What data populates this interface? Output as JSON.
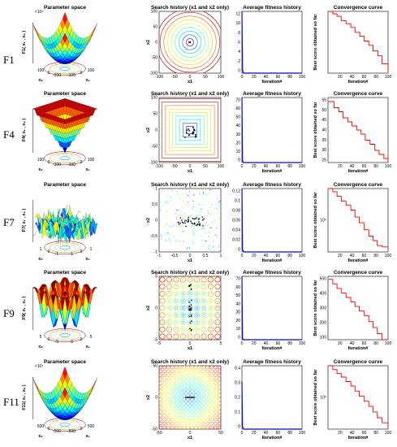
{
  "colors": {
    "trace": "#ff0000",
    "fitness": "#0000ff",
    "axis": "#000000",
    "search_points": "#000000"
  },
  "rows": [
    {
      "label": "F1",
      "parameter_space": {
        "title": "Parameter space",
        "zlabel": "F1( x₁ , x₂ )",
        "xlabel_left": "x₂",
        "xlabel_right": "x₁",
        "ticks_left": [
          "100",
          "0",
          "-100"
        ],
        "ticks_right": [
          "-100",
          "0",
          "100"
        ],
        "z_exponent": "×10⁴",
        "shape": "bowl"
      },
      "search_history": {
        "title": "Search history (x1 and x2 only)",
        "xlabel": "x1",
        "ylabel": "x2",
        "xticks": [
          "-100",
          "-50",
          "0",
          "50",
          "100"
        ],
        "yticks": [
          "100",
          "50",
          "0",
          "-50",
          "-100"
        ],
        "contour": "circle"
      },
      "average_fitness": {
        "title": "Average fitness history",
        "xlabel": "Iteration#",
        "xticks": [
          "0",
          "20",
          "40",
          "60",
          "80",
          "100"
        ],
        "yticks": [
          "12",
          "10",
          "8",
          "6",
          "4",
          "2",
          "0"
        ]
      },
      "convergence": {
        "title": "Convergence curve",
        "xlabel": "Iteration#",
        "ylabel": "Best score obtained so far",
        "xticks": [
          "20",
          "40",
          "60",
          "80",
          "100"
        ],
        "yticks": []
      }
    },
    {
      "label": "F4",
      "parameter_space": {
        "title": "Parameter space",
        "zlabel": "F4( x₁ , x₂ )",
        "xlabel_left": "x₂",
        "xlabel_right": "x₁",
        "ticks_left": [
          "100",
          "0",
          "-100"
        ],
        "ticks_right": [
          "-100",
          "0",
          "100"
        ],
        "z_exponent": "",
        "shape": "pyramid"
      },
      "search_history": {
        "title": "Search history (x1 and x2 only)",
        "xlabel": "x1",
        "ylabel": "x2",
        "xticks": [
          "-100",
          "-50",
          "0",
          "50",
          "100"
        ],
        "yticks": [
          "100",
          "50",
          "0",
          "-50",
          "-100"
        ],
        "contour": "square"
      },
      "average_fitness": {
        "title": "Average fitness history",
        "xlabel": "Iteration#",
        "xticks": [
          "0",
          "20",
          "40",
          "60",
          "80",
          "100"
        ],
        "yticks": [
          "70",
          "60",
          "50",
          "40",
          "30",
          "20",
          "10",
          "0"
        ]
      },
      "convergence": {
        "title": "Convergence curve",
        "xlabel": "Iteration#",
        "ylabel": "Best score obtained so far",
        "xticks": [
          "20",
          "40",
          "60",
          "80",
          "100"
        ],
        "yticks": [
          "55",
          "50",
          "45",
          "40",
          "35",
          "30",
          "25"
        ]
      }
    },
    {
      "label": "F7",
      "parameter_space": {
        "title": "Parameter space",
        "zlabel": "F7( x₁ , x₂ )",
        "xlabel_left": "x₂",
        "xlabel_right": "x₁",
        "ticks_left": [
          "1",
          "0",
          "-1"
        ],
        "ticks_right": [
          "-1",
          "0",
          "1"
        ],
        "z_exponent": "",
        "shape": "noise"
      },
      "search_history": {
        "title": "Search history (x1 and x2 only)",
        "xlabel": "x1",
        "ylabel": "x2",
        "xticks": [
          "-1",
          "-0.5",
          "0",
          "0.5",
          "1"
        ],
        "yticks": [
          "1",
          "0.5",
          "0",
          "-0.5",
          "-1"
        ],
        "contour": "noise"
      },
      "average_fitness": {
        "title": "Average fitness history",
        "xlabel": "Iteration#",
        "xticks": [
          "0",
          "20",
          "40",
          "60",
          "80",
          "100"
        ],
        "yticks": [
          "0.12",
          "0.1",
          "0.08",
          "0.06",
          "0.04",
          "0.02",
          "0"
        ]
      },
      "convergence": {
        "title": "Convergence curve",
        "xlabel": "Iteration#",
        "ylabel": "Best score obtained so far",
        "xticks": [
          "20",
          "40",
          "60",
          "80",
          "100"
        ],
        "yticks": [
          "10⁰"
        ]
      }
    },
    {
      "label": "F9",
      "parameter_space": {
        "title": "Parameter space",
        "zlabel": "F9( x₁ , x₂ )",
        "xlabel_left": "x₂",
        "xlabel_right": "x₁",
        "ticks_left": [
          "5",
          "0",
          "-5"
        ],
        "ticks_right": [
          "-5",
          "0",
          "5"
        ],
        "z_exponent": "",
        "shape": "rastrigin"
      },
      "search_history": {
        "title": "Search history (x1 and x2 only)",
        "xlabel": "x1",
        "ylabel": "x2",
        "xticks": [
          "-5",
          "0",
          "5"
        ],
        "yticks": [
          "5",
          "0",
          "-5"
        ],
        "contour": "grid"
      },
      "average_fitness": {
        "title": "Average fitness history",
        "xlabel": "Iteration#",
        "xticks": [
          "0",
          "20",
          "40",
          "60",
          "80",
          "100"
        ],
        "yticks": [
          "70",
          "60",
          "50",
          "40",
          "30",
          "20",
          "10",
          "0"
        ]
      },
      "convergence": {
        "title": "Convergence curve",
        "xlabel": "Iteration#",
        "ylabel": "Best score obtained so far",
        "xticks": [
          "20",
          "40",
          "60",
          "80",
          "100"
        ],
        "yticks": [
          "500",
          "400",
          "300",
          "200",
          "100"
        ]
      }
    },
    {
      "label": "F11",
      "parameter_space": {
        "title": "Parameter space",
        "zlabel": "F11( x₁ , x₂ )",
        "xlabel_left": "x₂",
        "xlabel_right": "x₁",
        "ticks_left": [
          "500",
          "0",
          "-500"
        ],
        "ticks_right": [
          "-500",
          "0",
          "500"
        ],
        "z_exponent": "×10⁴",
        "shape": "bowl"
      },
      "search_history": {
        "title": "Search history (x1 and x2 only)",
        "xlabel": "x1",
        "ylabel": "x2",
        "xticks": [
          "-50",
          "0",
          "50"
        ],
        "yticks": [
          "50",
          "0",
          "-50"
        ],
        "contour": "dense"
      },
      "average_fitness": {
        "title": "Average fitness history",
        "xlabel": "Iteration#",
        "xticks": [
          "0",
          "20",
          "40",
          "60",
          "80",
          "100"
        ],
        "yticks": [
          "0.4",
          "0.3",
          "0.2",
          "0.1",
          "0"
        ]
      },
      "convergence": {
        "title": "Convergence curve",
        "xlabel": "Iteration#",
        "ylabel": "Best score obtained so far",
        "xticks": [
          "20",
          "40",
          "60",
          "80",
          "100"
        ],
        "yticks": [
          "10⁰"
        ]
      }
    }
  ],
  "chart_data": [
    {
      "type": "line",
      "function": "F1",
      "panel": "Average fitness history",
      "x": [
        0,
        1,
        2,
        3,
        5,
        10,
        20,
        40,
        60,
        80,
        100
      ],
      "values": [
        12,
        0.6,
        0.2,
        0.05,
        0,
        0,
        0,
        0,
        0,
        0,
        0
      ],
      "xlim": [
        0,
        100
      ],
      "ylim": [
        0,
        12
      ]
    },
    {
      "type": "line",
      "function": "F1",
      "panel": "Convergence curve",
      "x": [
        1,
        8,
        15,
        22,
        30,
        38,
        45,
        53,
        60,
        68,
        75,
        83,
        90,
        100
      ],
      "values": [
        1.0,
        0.96,
        0.92,
        0.85,
        0.8,
        0.74,
        0.66,
        0.6,
        0.52,
        0.45,
        0.36,
        0.28,
        0.15,
        0.02
      ],
      "xlim": [
        0,
        100
      ],
      "ylim": [
        0,
        1
      ],
      "yscale": "log"
    },
    {
      "type": "line",
      "function": "F4",
      "panel": "Average fitness history",
      "x": [
        0,
        1,
        2,
        3,
        5,
        10,
        20,
        40,
        60,
        80,
        100
      ],
      "values": [
        70,
        2,
        0.5,
        0.1,
        0,
        0,
        0,
        0,
        0,
        0,
        0
      ],
      "xlim": [
        0,
        100
      ],
      "ylim": [
        0,
        70
      ]
    },
    {
      "type": "line",
      "function": "F4",
      "panel": "Convergence curve",
      "x": [
        1,
        10,
        18,
        25,
        33,
        40,
        48,
        55,
        62,
        70,
        78,
        85,
        93,
        100
      ],
      "values": [
        55,
        52,
        50,
        47,
        45,
        43,
        41,
        39,
        36,
        34,
        31,
        29,
        27,
        25
      ],
      "xlim": [
        0,
        100
      ],
      "ylim": [
        25,
        57
      ]
    },
    {
      "type": "line",
      "function": "F7",
      "panel": "Average fitness history",
      "x": [
        0,
        1,
        2,
        3,
        5,
        10,
        20,
        40,
        60,
        80,
        100
      ],
      "values": [
        0.12,
        0.005,
        0.002,
        0.001,
        0,
        0,
        0,
        0,
        0,
        0,
        0
      ],
      "xlim": [
        0,
        100
      ],
      "ylim": [
        0,
        0.12
      ]
    },
    {
      "type": "line",
      "function": "F7",
      "panel": "Convergence curve",
      "x": [
        1,
        8,
        15,
        22,
        30,
        38,
        45,
        52,
        60,
        68,
        75,
        82,
        90,
        100
      ],
      "values": [
        1.0,
        0.95,
        0.88,
        0.8,
        0.74,
        0.66,
        0.55,
        0.46,
        0.35,
        0.25,
        0.18,
        0.1,
        0.08,
        0.08
      ],
      "xlim": [
        0,
        100
      ],
      "ylim": [
        0,
        1
      ],
      "yscale": "log"
    },
    {
      "type": "line",
      "function": "F9",
      "panel": "Average fitness history",
      "x": [
        0,
        1,
        2,
        3,
        5,
        10,
        20,
        40,
        60,
        80,
        100
      ],
      "values": [
        70,
        1.5,
        0.4,
        0.1,
        0,
        0,
        0,
        0,
        0,
        0,
        0
      ],
      "xlim": [
        0,
        100
      ],
      "ylim": [
        0,
        70
      ]
    },
    {
      "type": "line",
      "function": "F9",
      "panel": "Convergence curve",
      "x": [
        1,
        8,
        15,
        22,
        30,
        38,
        45,
        52,
        60,
        68,
        75,
        82,
        90,
        100
      ],
      "values": [
        500,
        470,
        440,
        410,
        380,
        350,
        320,
        290,
        260,
        220,
        180,
        140,
        100,
        100
      ],
      "xlim": [
        0,
        100
      ],
      "ylim": [
        100,
        520
      ]
    },
    {
      "type": "line",
      "function": "F11",
      "panel": "Average fitness history",
      "x": [
        0,
        1,
        2,
        3,
        5,
        10,
        20,
        40,
        60,
        80,
        100
      ],
      "values": [
        0.3,
        0.02,
        0.005,
        0.001,
        0,
        0,
        0,
        0,
        0,
        0,
        0
      ],
      "xlim": [
        0,
        100
      ],
      "ylim": [
        0,
        0.4
      ]
    },
    {
      "type": "line",
      "function": "F11",
      "panel": "Convergence curve",
      "x": [
        1,
        8,
        15,
        22,
        30,
        38,
        45,
        52,
        60,
        68,
        75,
        82,
        90,
        100
      ],
      "values": [
        1.0,
        0.94,
        0.88,
        0.82,
        0.75,
        0.68,
        0.6,
        0.52,
        0.44,
        0.36,
        0.27,
        0.18,
        0.1,
        0.04
      ],
      "xlim": [
        0,
        100
      ],
      "ylim": [
        0,
        1
      ],
      "yscale": "log"
    }
  ]
}
